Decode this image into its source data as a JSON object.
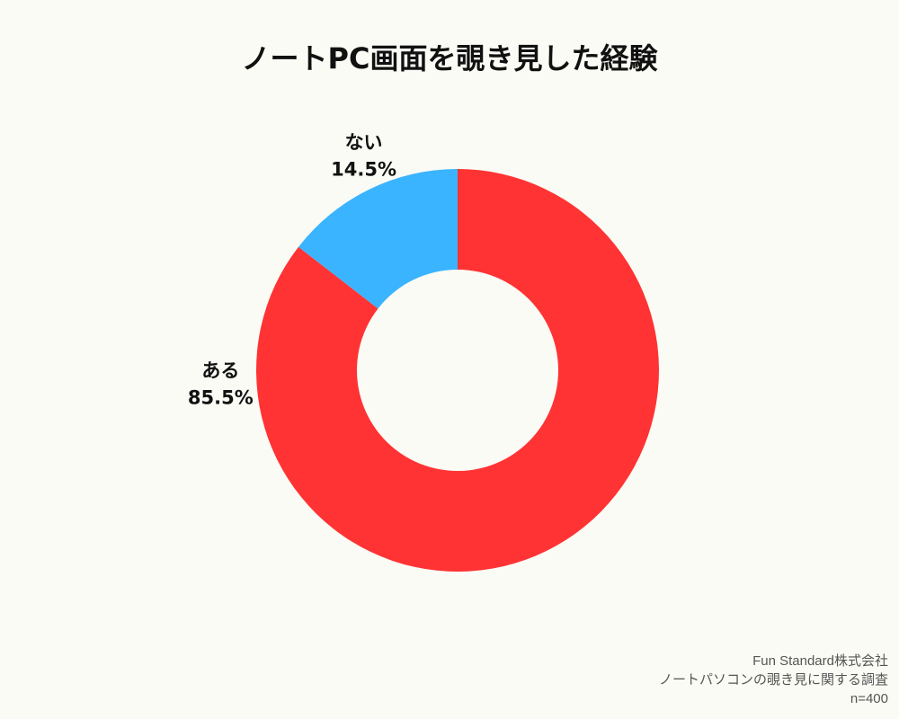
{
  "chart_data": {
    "type": "pie",
    "title": "ノートPC画面を覗き見した経験",
    "donut": true,
    "categories": [
      "ある",
      "ない"
    ],
    "values": [
      85.5,
      14.5
    ],
    "value_labels": [
      "85.5%",
      "14.5%"
    ],
    "colors": [
      "#ff3334",
      "#3bb4ff"
    ],
    "start": "12 o'clock",
    "direction": "clockwise"
  },
  "footer": {
    "company": "Fun Standard株式会社",
    "survey": "ノートパソコンの覗き見に関する調査",
    "sample": "n=400"
  }
}
